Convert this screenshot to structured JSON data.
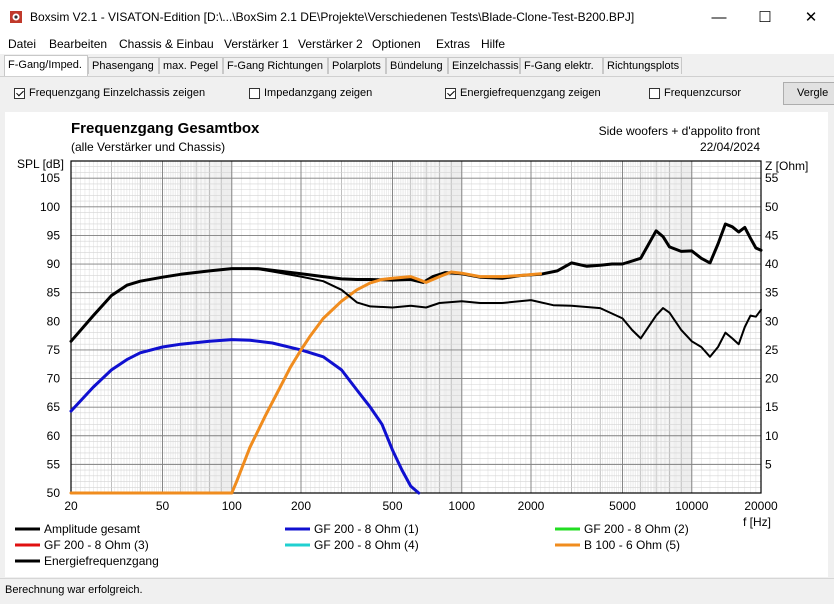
{
  "window": {
    "title": "Boxsim V2.1 - VISATON-Edition [D:\\...\\BoxSim 2.1 DE\\Projekte\\Verschiedenen Tests\\Blade-Clone-Test-B200.BPJ]",
    "minimize": "—",
    "maximize": "☐",
    "close": "✕",
    "icon": "boxsim-app-icon"
  },
  "menu": [
    "Datei",
    "Bearbeiten",
    "Chassis & Einbau",
    "Verstärker 1",
    "Verstärker 2",
    "Optionen",
    "Extras",
    "Hilfe"
  ],
  "tabs": [
    "F-Gang/Imped.",
    "Phasengang",
    "max. Pegel",
    "F-Gang Richtungen",
    "Polarplots",
    "Bündelung",
    "Einzelchassis",
    "F-Gang elektr.",
    "Richtungsplots"
  ],
  "active_tab": 0,
  "checkboxes": [
    {
      "label": "Frequenzgang Einzelchassis zeigen",
      "checked": true
    },
    {
      "label": "Impedanzgang zeigen",
      "checked": false
    },
    {
      "label": "Energiefrequenzgang zeigen",
      "checked": true
    },
    {
      "label": "Frequenzcursor",
      "checked": false
    }
  ],
  "side_button": "Vergle",
  "status": "Berechnung war erfolgreich.",
  "colors": {
    "black": "#000000",
    "blue": "#1010d0",
    "green": "#22dd22",
    "red": "#e01010",
    "cyan": "#20d0d0",
    "orange": "#f08c1e"
  },
  "chart_data": {
    "type": "line",
    "title": "Frequenzgang Gesamtbox",
    "subtitle": "(alle Verstärker und Chassis)",
    "annotation": "Side woofers + d'appolito front",
    "date": "22/04/2024",
    "ylabel": "SPL [dB]",
    "y2label": "Z [Ohm]",
    "xlabel": "f [Hz]",
    "x_scale": "log",
    "xlim": [
      20,
      20000
    ],
    "ylim": [
      50,
      108
    ],
    "y2lim": [
      0,
      58
    ],
    "x_ticks": [
      20,
      50,
      100,
      200,
      500,
      1000,
      2000,
      5000,
      10000,
      20000
    ],
    "x_tick_labels": [
      "20",
      "50",
      "100",
      "200",
      "500",
      "1000",
      "2000",
      "5000",
      "10000",
      "20000"
    ],
    "y_ticks": [
      50,
      55,
      60,
      65,
      70,
      75,
      80,
      85,
      90,
      95,
      100,
      105
    ],
    "y2_ticks": [
      5,
      10,
      15,
      20,
      25,
      30,
      35,
      40,
      45,
      50,
      55
    ],
    "grid": true,
    "legend_placement": "bottom",
    "series": [
      {
        "name": "Amplitude gesamt",
        "color": "#000000",
        "width": 3,
        "points": [
          [
            20,
            76.5
          ],
          [
            25,
            81
          ],
          [
            30,
            84.5
          ],
          [
            35,
            86.3
          ],
          [
            40,
            87
          ],
          [
            50,
            87.7
          ],
          [
            60,
            88.2
          ],
          [
            80,
            88.8
          ],
          [
            100,
            89.2
          ],
          [
            130,
            89.2
          ],
          [
            150,
            88.9
          ],
          [
            200,
            88.3
          ],
          [
            250,
            87.8
          ],
          [
            300,
            87.4
          ],
          [
            350,
            87.3
          ],
          [
            400,
            87.3
          ],
          [
            500,
            87.2
          ],
          [
            600,
            87.3
          ],
          [
            680,
            86.8
          ],
          [
            750,
            87.8
          ],
          [
            850,
            88.5
          ],
          [
            1000,
            88.3
          ],
          [
            1200,
            87.7
          ],
          [
            1500,
            87.5
          ],
          [
            1800,
            88
          ],
          [
            2200,
            88.2
          ],
          [
            2600,
            88.8
          ],
          [
            3000,
            90.2
          ],
          [
            3500,
            89.6
          ],
          [
            4000,
            89.8
          ],
          [
            4500,
            90
          ],
          [
            5000,
            90
          ],
          [
            6000,
            91
          ],
          [
            7000,
            95.8
          ],
          [
            7500,
            94.8
          ],
          [
            8000,
            93
          ],
          [
            9000,
            92.2
          ],
          [
            10000,
            92.3
          ],
          [
            11000,
            91
          ],
          [
            12000,
            90.2
          ],
          [
            13000,
            93.5
          ],
          [
            14000,
            97
          ],
          [
            15000,
            96.5
          ],
          [
            16000,
            95.6
          ],
          [
            17000,
            96.4
          ],
          [
            18000,
            94.5
          ],
          [
            19000,
            92.8
          ],
          [
            20000,
            92.4
          ]
        ]
      },
      {
        "name": "GF 200 - 8 Ohm (1)",
        "color": "#1010d0",
        "width": 3,
        "points": [
          [
            20,
            64.3
          ],
          [
            25,
            68.5
          ],
          [
            30,
            71.5
          ],
          [
            35,
            73.3
          ],
          [
            40,
            74.5
          ],
          [
            50,
            75.5
          ],
          [
            60,
            76
          ],
          [
            80,
            76.5
          ],
          [
            100,
            76.8
          ],
          [
            120,
            76.7
          ],
          [
            150,
            76.2
          ],
          [
            200,
            75
          ],
          [
            250,
            73.8
          ],
          [
            300,
            71.5
          ],
          [
            350,
            68
          ],
          [
            400,
            65
          ],
          [
            450,
            62
          ],
          [
            500,
            57.5
          ],
          [
            550,
            54
          ],
          [
            600,
            51.2
          ],
          [
            650,
            50
          ]
        ]
      },
      {
        "name": "GF 200 - 8 Ohm (2)",
        "color": "#22dd22",
        "width": 3,
        "points": []
      },
      {
        "name": "GF 200 - 8 Ohm (3)",
        "color": "#e01010",
        "width": 3,
        "points": []
      },
      {
        "name": "GF 200 - 8 Ohm (4)",
        "color": "#20d0d0",
        "width": 3,
        "points": []
      },
      {
        "name": "B 100 - 6 Ohm (5)",
        "color": "#f08c1e",
        "width": 3,
        "points": [
          [
            20,
            50
          ],
          [
            100,
            50
          ],
          [
            105,
            52
          ],
          [
            120,
            58
          ],
          [
            140,
            63.5
          ],
          [
            160,
            68
          ],
          [
            180,
            72
          ],
          [
            200,
            75
          ],
          [
            220,
            77.5
          ],
          [
            250,
            80.5
          ],
          [
            300,
            83.5
          ],
          [
            350,
            85.5
          ],
          [
            400,
            86.7
          ],
          [
            450,
            87.3
          ],
          [
            500,
            87.5
          ],
          [
            600,
            87.8
          ],
          [
            650,
            87.3
          ],
          [
            700,
            86.8
          ],
          [
            800,
            87.8
          ],
          [
            900,
            88.6
          ],
          [
            1000,
            88.4
          ],
          [
            1200,
            87.8
          ],
          [
            1500,
            87.8
          ],
          [
            1800,
            88
          ],
          [
            2200,
            88.3
          ]
        ]
      },
      {
        "name": "Energiefrequenzgang",
        "color": "#000000",
        "width": 2,
        "points": [
          [
            20,
            76.5
          ],
          [
            25,
            81
          ],
          [
            30,
            84.5
          ],
          [
            35,
            86.3
          ],
          [
            40,
            87
          ],
          [
            50,
            87.7
          ],
          [
            60,
            88.2
          ],
          [
            80,
            88.8
          ],
          [
            100,
            89.2
          ],
          [
            130,
            89.1
          ],
          [
            150,
            88.7
          ],
          [
            200,
            87.8
          ],
          [
            250,
            87
          ],
          [
            300,
            85.5
          ],
          [
            350,
            83.3
          ],
          [
            400,
            82.6
          ],
          [
            500,
            82.4
          ],
          [
            600,
            82.7
          ],
          [
            700,
            82.4
          ],
          [
            800,
            83.2
          ],
          [
            1000,
            83.5
          ],
          [
            1200,
            83.2
          ],
          [
            1500,
            83.2
          ],
          [
            2000,
            83.7
          ],
          [
            2500,
            82.8
          ],
          [
            3000,
            82.7
          ],
          [
            4000,
            82.3
          ],
          [
            5000,
            80.5
          ],
          [
            5500,
            78.5
          ],
          [
            6000,
            77
          ],
          [
            7000,
            81
          ],
          [
            7500,
            82.3
          ],
          [
            8000,
            81.5
          ],
          [
            9000,
            78.5
          ],
          [
            10000,
            76.5
          ],
          [
            11000,
            75.5
          ],
          [
            12000,
            73.8
          ],
          [
            13000,
            75.5
          ],
          [
            14000,
            78
          ],
          [
            15000,
            77
          ],
          [
            16000,
            76
          ],
          [
            17000,
            79
          ],
          [
            18000,
            81
          ],
          [
            19000,
            80.8
          ],
          [
            20000,
            82
          ]
        ]
      }
    ]
  }
}
